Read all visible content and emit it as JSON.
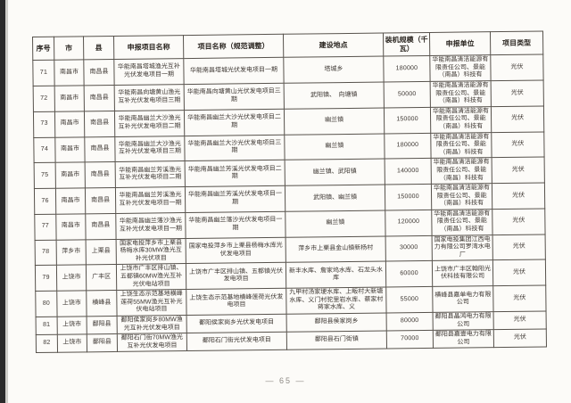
{
  "page": {
    "number": "— 65 —"
  },
  "table": {
    "headers": [
      "序号",
      "市",
      "县",
      "申报项目名称",
      "项目名称（规范调整）",
      "建设地点",
      "装机规模（千瓦）",
      "申报单位",
      "项目类型"
    ],
    "rows": [
      {
        "no": "71",
        "city": "南昌市",
        "county": "南昌县",
        "declared": "华能南昌塔城渔光互补光伏发电项目一期",
        "adjusted": "华能南昌塔城光伏发电项目一期",
        "location": "塔城乡",
        "capacity": "180000",
        "unit": "华能南昌清洁能源有限责任公司、景能（南昌）科技有",
        "type": "光伏"
      },
      {
        "no": "72",
        "city": "南昌市",
        "county": "南昌县",
        "declared": "华能南昌向塘黄山渔光互补光伏发电项目三期",
        "adjusted": "华能南昌向塘黄山光伏发电项目三期",
        "location": "武阳镇、　向塘镇",
        "capacity": "50000",
        "unit": "华能南昌清洁能源有限责任公司、景能（南昌）科技有",
        "type": "光伏"
      },
      {
        "no": "73",
        "city": "南昌市",
        "county": "南昌县",
        "declared": "华能南昌幽兰大沙渔光互补光伏发电项目二期",
        "adjusted": "华能南昌幽兰大沙光伏发电项目二期",
        "location": "幽兰镇",
        "capacity": "150000",
        "unit": "华能南昌清洁能源有限责任公司、景能（南昌）科技有",
        "type": "光伏"
      },
      {
        "no": "74",
        "city": "南昌市",
        "county": "南昌县",
        "declared": "华能南昌幽兰大沙渔光互补光伏发电项目三期",
        "adjusted": "华能南昌幽兰大沙光伏发电项目三期",
        "location": "幽兰镇",
        "capacity": "180000",
        "unit": "华能南昌清洁能源有限责任公司、景能（南昌）科技有",
        "type": "光伏"
      },
      {
        "no": "75",
        "city": "南昌市",
        "county": "南昌县",
        "declared": "华能南昌幽兰芳溪渔光互补光伏发电项目二期",
        "adjusted": "华能南昌幽兰芳溪光伏发电项目二期",
        "location": "幽兰镇、武阳镇",
        "capacity": "140000",
        "unit": "华能南昌清洁能源有限责任公司、景能（南昌）科技有",
        "type": "光伏"
      },
      {
        "no": "76",
        "city": "南昌市",
        "county": "南昌县",
        "declared": "华能南昌幽兰芳溪渔光互补光伏发电项目一期",
        "adjusted": "华能南昌幽兰芳溪光伏发电项目一期",
        "location": "武阳镇、幽兰镇",
        "capacity": "150000",
        "unit": "华能南昌清洁能源有限责任公司、景能（南昌）科技有",
        "type": "光伏"
      },
      {
        "no": "77",
        "city": "南昌市",
        "county": "南昌县",
        "declared": "华能南昌幽兰落沙渔光互补光伏发电项目一期",
        "adjusted": "华能南昌幽兰落沙光伏发电项目一期",
        "location": "幽兰镇",
        "capacity": "120000",
        "unit": "华能南昌清洁能源有限责任公司、景能（南昌）科技有",
        "type": "光伏"
      },
      {
        "no": "78",
        "city": "萍乡市",
        "county": "上栗县",
        "declared": "国家电投萍乡市上栗县杨梅水库30MW渔光互补光伏项目",
        "adjusted": "国家电投萍乡市上栗县杨梅水库光伏发电项目",
        "location": "萍乡市上栗县金山镇新杨村",
        "capacity": "30000",
        "unit": "国家电投集团江西电力有限公司罗湾水电厂",
        "type": "光伏"
      },
      {
        "no": "79",
        "city": "上饶市",
        "county": "广丰区",
        "declared": "上饶市广丰区排山镇、五都镇60MW渔光互补光伏电站项目",
        "adjusted": "上饶市广丰区排山镇、五都镇光伏发电项目",
        "location": "新丰水库、詹家坞水库、石龙头水库",
        "capacity": "60000",
        "unit": "上饶市广丰区翰阳光伏科技有限公司",
        "type": "光伏"
      },
      {
        "no": "80",
        "city": "上饶市",
        "county": "横峰县",
        "declared": "上饶生态示范基地横峰莲荷55MW渔光互补光伏电站项目",
        "adjusted": "上饶生态示范基地横峰莲荷光伏发电项目",
        "location": "九甲村汤家埂水库、上畈村大新塘水库、义门村驼里岩水库、蔡家村蒋家水库、义",
        "capacity": "55000",
        "unit": "横峰县嘉单电力有限公司",
        "type": "光伏"
      },
      {
        "no": "81",
        "city": "上饶市",
        "county": "鄱阳县",
        "declared": "鄱阳侯家岗乡80MW渔光互补光伏发电项目",
        "adjusted": "鄱阳侯家岗乡光伏发电项目",
        "location": "鄱阳县侯家岗乡",
        "capacity": "80000",
        "unit": "鄱阳县晶鸿电力有限公司",
        "type": "光伏"
      },
      {
        "no": "82",
        "city": "上饶市",
        "county": "鄱阳县",
        "declared": "鄱阳石门街70MW渔光互补光伏发电项目",
        "adjusted": "鄱阳石门街光伏发电项目",
        "location": "鄱阳县石门街镇",
        "capacity": "70000",
        "unit": "鄱阳县嘉壹电力有限公司",
        "type": "光伏"
      }
    ]
  }
}
